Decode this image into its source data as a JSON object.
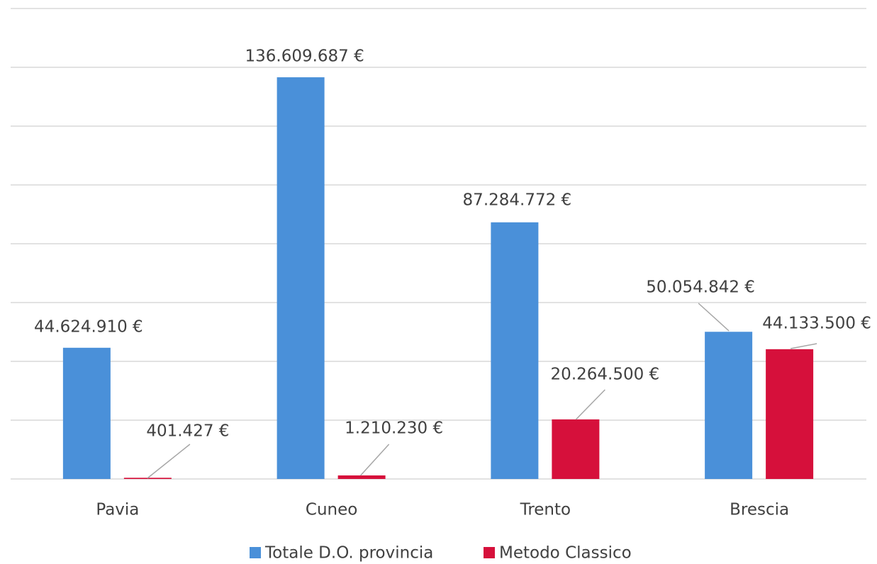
{
  "chart_data": {
    "type": "bar",
    "categories": [
      "Pavia",
      "Cuneo",
      "Trento",
      "Brescia"
    ],
    "series": [
      {
        "name": "Totale D.O. provincia",
        "color": "#4a90d9",
        "values": [
          44624910,
          136609687,
          87284772,
          50054842
        ],
        "value_labels": [
          "44.624.910 €",
          "136.609.687 €",
          "87.284.772 €",
          "50.054.842 €"
        ]
      },
      {
        "name": "Metodo Classico",
        "color": "#d6103b",
        "values": [
          401427,
          1210230,
          20264500,
          44133500
        ],
        "value_labels": [
          "401.427 €",
          "1.210.230 €",
          "20.264.500 €",
          "44.133.500 €"
        ]
      }
    ],
    "ylim": [
      0,
      160000000
    ],
    "yticks": [
      0,
      20000000,
      40000000,
      60000000,
      80000000,
      100000000,
      120000000,
      140000000,
      160000000
    ],
    "grid": true,
    "legend": "bottom"
  }
}
